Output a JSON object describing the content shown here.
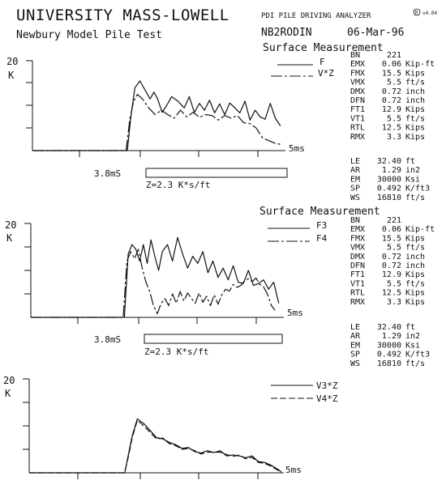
{
  "header": {
    "institution": "UNIVERSITY MASS-LOWELL",
    "project": "Newbury Model Pile Test",
    "analyzer": "PDI PILE DRIVING ANALYZER",
    "version": "v4.04",
    "file_id": "NB2RODIN",
    "date": "06-Mar-96"
  },
  "panel_title": "Surface Measurement",
  "stats": {
    "rows": [
      {
        "key": "BN",
        "value": "221",
        "unit": ""
      },
      {
        "key": "EMX",
        "value": "0.06",
        "unit": "Kip-ft"
      },
      {
        "key": "FMX",
        "value": "15.5",
        "unit": "Kips"
      },
      {
        "key": "VMX",
        "value": "5.5",
        "unit": "ft/s"
      },
      {
        "key": "DMX",
        "value": "0.72",
        "unit": "inch"
      },
      {
        "key": "DFN",
        "value": "0.72",
        "unit": "inch"
      },
      {
        "key": "FT1",
        "value": "12.9",
        "unit": "Kips"
      },
      {
        "key": "VT1",
        "value": "5.5",
        "unit": "ft/s"
      },
      {
        "key": "RTL",
        "value": "12.5",
        "unit": "Kips"
      },
      {
        "key": "RMX",
        "value": "3.3",
        "unit": "Kips"
      }
    ],
    "params": [
      {
        "key": "LE",
        "value": "32.40",
        "unit": "ft"
      },
      {
        "key": "AR",
        "value": "1.29",
        "unit": "in2"
      },
      {
        "key": "EM",
        "value": "30000",
        "unit": "Ksi"
      },
      {
        "key": "SP",
        "value": "0.492",
        "unit": "K/ft3"
      },
      {
        "key": "WS",
        "value": "16810",
        "unit": "ft/s"
      }
    ]
  },
  "chart_data": [
    {
      "type": "line",
      "ylabel": "20",
      "yunit": "K",
      "ylim": [
        0,
        20
      ],
      "xlim": [
        0,
        40
      ],
      "time_label": "5ms",
      "scale_time_label": "3.8mS",
      "impedance_label": "Z=2.3 K*s/ft",
      "series": [
        {
          "name": "F",
          "dash": "solid",
          "x": [
            0,
            10,
            15,
            15.6,
            16.2,
            17,
            17.8,
            18.6,
            19.2,
            19.8,
            20.5,
            21.2,
            22,
            23,
            24,
            24.8,
            25.6,
            26.4,
            27.2,
            28,
            28.8,
            29.6,
            30.4,
            31.2,
            32,
            32.8,
            33.6,
            34.4,
            35.2,
            36,
            36.8,
            37.6,
            38.4,
            39.2
          ],
          "y": [
            0,
            0,
            0,
            8,
            14,
            15.5,
            13.5,
            11.5,
            13,
            11.5,
            8.5,
            10,
            12,
            11,
            9.5,
            12,
            8.5,
            10.5,
            9,
            11.2,
            8.4,
            10.4,
            8,
            10.6,
            9.5,
            8.4,
            11,
            6.8,
            9,
            7.5,
            7,
            10.5,
            7.2,
            5.5
          ]
        },
        {
          "name": "V*Z",
          "dash": "dashdot",
          "x": [
            0,
            10,
            14.8,
            15.4,
            16,
            16.6,
            17.4,
            18.4,
            19.4,
            20.4,
            21.4,
            22.4,
            23.4,
            24.4,
            25.4,
            26.4,
            27.4,
            28.4,
            29.4,
            30.4,
            31.4,
            32.4,
            33.4,
            34.4,
            35.4,
            36.4,
            37.4,
            38.4,
            39.2
          ],
          "y": [
            0,
            0,
            0,
            7,
            11,
            12.5,
            11.5,
            9.5,
            8,
            9,
            8,
            7.2,
            9,
            7.5,
            8.5,
            7.4,
            8,
            7.8,
            6.8,
            7.8,
            7.2,
            7.8,
            6.2,
            6,
            5,
            2.8,
            2.2,
            1.6,
            1.4
          ]
        }
      ]
    },
    {
      "type": "line",
      "ylabel": "20",
      "yunit": "K",
      "ylim": [
        0,
        20
      ],
      "xlim": [
        0,
        40
      ],
      "time_label": "5ms",
      "scale_time_label": "3.8mS",
      "impedance_label": "Z=2.3 K*s/ft",
      "series": [
        {
          "name": "F3",
          "dash": "solid",
          "x": [
            0,
            10,
            14.8,
            15.4,
            16,
            16.6,
            17.2,
            17.8,
            18.4,
            19,
            19.6,
            20.2,
            20.8,
            21.6,
            22.4,
            23.2,
            24,
            24.8,
            25.6,
            26.4,
            27.2,
            28,
            28.8,
            29.6,
            30.4,
            31.2,
            32,
            32.8,
            33.6,
            34.4,
            35.2,
            36,
            36.8,
            37.6,
            38.4,
            39.2
          ],
          "y": [
            0,
            0,
            0,
            13.5,
            15.5,
            14.5,
            12,
            15.5,
            11.5,
            16.5,
            13,
            10,
            14,
            15.5,
            12,
            17,
            13.5,
            10.5,
            13,
            11.5,
            14,
            9.5,
            12,
            8.5,
            10.5,
            8,
            11,
            7.5,
            7.2,
            10,
            6.8,
            7.2,
            8,
            6,
            7.5,
            3
          ]
        },
        {
          "name": "F4",
          "dash": "dashdot",
          "x": [
            0,
            10,
            14.6,
            15.2,
            15.8,
            16.4,
            17,
            17.6,
            18.2,
            18.8,
            19.4,
            20,
            20.6,
            21.2,
            21.8,
            22.4,
            23,
            23.6,
            24.2,
            24.8,
            25.4,
            26,
            26.6,
            27.2,
            27.8,
            28.4,
            29,
            29.6,
            30.2,
            30.8,
            31.4,
            32,
            32.6,
            33.2,
            33.8,
            34.4,
            35,
            35.6,
            36.2,
            36.8,
            37.4,
            38,
            38.6
          ],
          "y": [
            0,
            0,
            0,
            12,
            14,
            12.5,
            14.5,
            10.5,
            7.5,
            5.5,
            2.5,
            0.8,
            3,
            4,
            2.5,
            5,
            3,
            5.5,
            3.5,
            5.2,
            4,
            3,
            5.2,
            3.2,
            4.5,
            2.5,
            4.8,
            2.8,
            4.8,
            6,
            5.6,
            7,
            6.4,
            6.8,
            7.8,
            8.2,
            7.6,
            8.4,
            7,
            6.5,
            5,
            2.6,
            1.5
          ]
        }
      ]
    },
    {
      "type": "line",
      "ylabel": "20",
      "yunit": "K",
      "ylim": [
        0,
        20
      ],
      "xlim": [
        0,
        40
      ],
      "time_label": "5ms",
      "series": [
        {
          "name": "V3*Z",
          "dash": "solid",
          "x": [
            0,
            10,
            15,
            15.6,
            16.2,
            17,
            18,
            19,
            20,
            21,
            22,
            23,
            24,
            25,
            26,
            27,
            28,
            29,
            30,
            31,
            32,
            33,
            34,
            35,
            36,
            37,
            38,
            39,
            39.6
          ],
          "y": [
            0,
            0,
            0,
            4,
            8,
            11.5,
            10.5,
            9,
            7.5,
            7.2,
            6.5,
            6,
            5.2,
            5.4,
            4.5,
            4.2,
            4.7,
            4.3,
            4.7,
            3.6,
            3.8,
            3.6,
            3.2,
            3.6,
            2.4,
            2.2,
            1.6,
            0.8,
            0.2
          ]
        },
        {
          "name": "V4*Z",
          "dash": "dash",
          "x": [
            0,
            10,
            15,
            15.6,
            16.2,
            17,
            18,
            19,
            20,
            21,
            22,
            23,
            24,
            25,
            26,
            27,
            28,
            29,
            30,
            31,
            32,
            33,
            34,
            35,
            36,
            37,
            38,
            39,
            39.6
          ],
          "y": [
            0,
            0,
            0,
            3.6,
            7.6,
            11.2,
            10,
            8.6,
            7.2,
            7.4,
            6.2,
            5.8,
            5,
            5.2,
            4.7,
            4,
            4.4,
            4.4,
            4.4,
            3.9,
            3.5,
            3.8,
            3,
            3.3,
            2.2,
            2,
            1.4,
            0.6,
            0.1
          ]
        }
      ]
    }
  ]
}
